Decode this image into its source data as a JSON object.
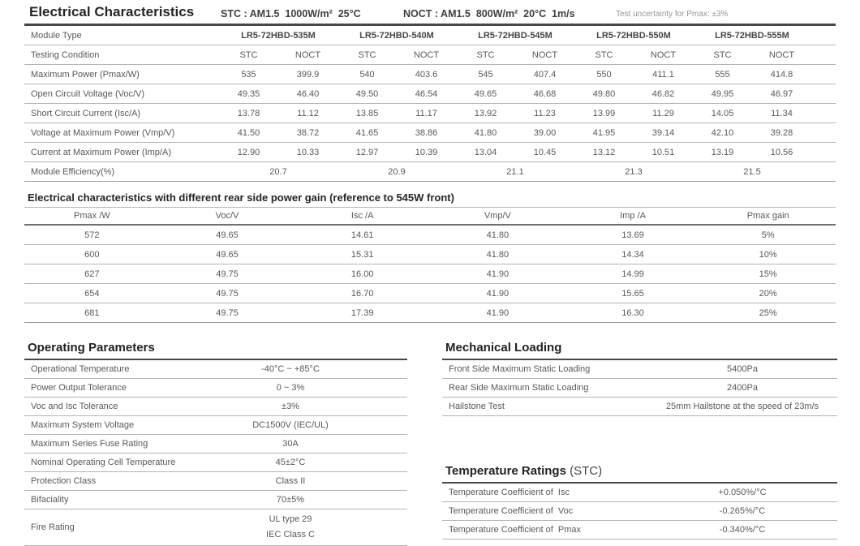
{
  "header": {
    "title": "Electrical Characteristics",
    "stc_condition": "STC : AM1.5  1000W/m²  25°C",
    "noct_condition": "NOCT : AM1.5  800W/m²  20°C  1m/s",
    "uncertainty_note": "Test uncertainty for Pmax: ±3%"
  },
  "electrical_table": {
    "module_type_label": "Module Type",
    "testing_condition_label": "Testing Condition",
    "condition_cells": [
      "STC",
      "NOCT",
      "STC",
      "NOCT",
      "STC",
      "NOCT",
      "STC",
      "NOCT",
      "STC",
      "NOCT"
    ],
    "modules": [
      "LR5-72HBD-535M",
      "LR5-72HBD-540M",
      "LR5-72HBD-545M",
      "LR5-72HBD-550M",
      "LR5-72HBD-555M"
    ],
    "rows": [
      {
        "label": "Maximum Power (Pmax/W)",
        "values": [
          "535",
          "399.9",
          "540",
          "403.6",
          "545",
          "407.4",
          "550",
          "411.1",
          "555",
          "414.8"
        ]
      },
      {
        "label": "Open Circuit Voltage (Voc/V)",
        "values": [
          "49.35",
          "46.40",
          "49.50",
          "46.54",
          "49.65",
          "46.68",
          "49.80",
          "46.82",
          "49.95",
          "46.97"
        ]
      },
      {
        "label": "Short Circuit Current (Isc/A)",
        "values": [
          "13.78",
          "11.12",
          "13.85",
          "11.17",
          "13.92",
          "11.23",
          "13.99",
          "11.29",
          "14.05",
          "11.34"
        ]
      },
      {
        "label": "Voltage at Maximum Power (Vmp/V)",
        "values": [
          "41.50",
          "38.72",
          "41.65",
          "38.86",
          "41.80",
          "39.00",
          "41.95",
          "39.14",
          "42.10",
          "39.28"
        ]
      },
      {
        "label": "Current at Maximum Power (Imp/A)",
        "values": [
          "12.90",
          "10.33",
          "12.97",
          "10.39",
          "13.04",
          "10.45",
          "13.12",
          "10.51",
          "13.19",
          "10.56"
        ]
      }
    ],
    "efficiency_row": {
      "label": "Module Efficiency(%)",
      "values": [
        "20.7",
        "20.9",
        "21.1",
        "21.3",
        "21.5"
      ]
    }
  },
  "rear_gain_table": {
    "title": "Electrical characteristics with different rear side power gain (reference to 545W front)",
    "headers": [
      "Pmax /W",
      "Voc/V",
      "Isc /A",
      "Vmp/V",
      "Imp /A",
      "Pmax gain"
    ],
    "rows": [
      [
        "572",
        "49.65",
        "14.61",
        "41.80",
        "13.69",
        "5%"
      ],
      [
        "600",
        "49.65",
        "15.31",
        "41.80",
        "14.34",
        "10%"
      ],
      [
        "627",
        "49.75",
        "16.00",
        "41.90",
        "14.99",
        "15%"
      ],
      [
        "654",
        "49.75",
        "16.70",
        "41.90",
        "15.65",
        "20%"
      ],
      [
        "681",
        "49.75",
        "17.39",
        "41.90",
        "16.30",
        "25%"
      ]
    ]
  },
  "operating_parameters": {
    "title": "Operating Parameters",
    "rows": [
      {
        "label": "Operational Temperature",
        "value": "-40°C ~ +85°C"
      },
      {
        "label": "Power Output Tolerance",
        "value": "0 ~ 3%"
      },
      {
        "label": "Voc and Isc Tolerance",
        "value": "±3%"
      },
      {
        "label": "Maximum System Voltage",
        "value": "DC1500V (IEC/UL)"
      },
      {
        "label": "Maximum Series Fuse Rating",
        "value": "30A"
      },
      {
        "label": "Nominal Operating Cell Temperature",
        "value": "45±2°C"
      },
      {
        "label": "Protection Class",
        "value": "Class II"
      },
      {
        "label": "Bifaciality",
        "value": "70±5%"
      }
    ],
    "fire_rating": {
      "label": "Fire Rating",
      "line1": "UL type 29",
      "line2": "IEC Class C"
    }
  },
  "mechanical_loading": {
    "title": "Mechanical Loading",
    "rows": [
      {
        "label": "Front Side Maximum Static Loading",
        "value": "5400Pa"
      },
      {
        "label": "Rear Side Maximum Static Loading",
        "value": "2400Pa"
      },
      {
        "label": "Hailstone Test",
        "value": "25mm Hailstone at the speed of 23m/s"
      }
    ]
  },
  "temperature_ratings": {
    "title": "Temperature Ratings ",
    "title_suffix": "(STC)",
    "rows": [
      {
        "label": "Temperature Coefficient of  Isc",
        "value": "+0.050%/°C"
      },
      {
        "label": "Temperature Coefficient of  Voc",
        "value": "-0.265%/°C"
      },
      {
        "label": "Temperature Coefficient of  Pmax",
        "value": "-0.340%/°C"
      }
    ]
  }
}
